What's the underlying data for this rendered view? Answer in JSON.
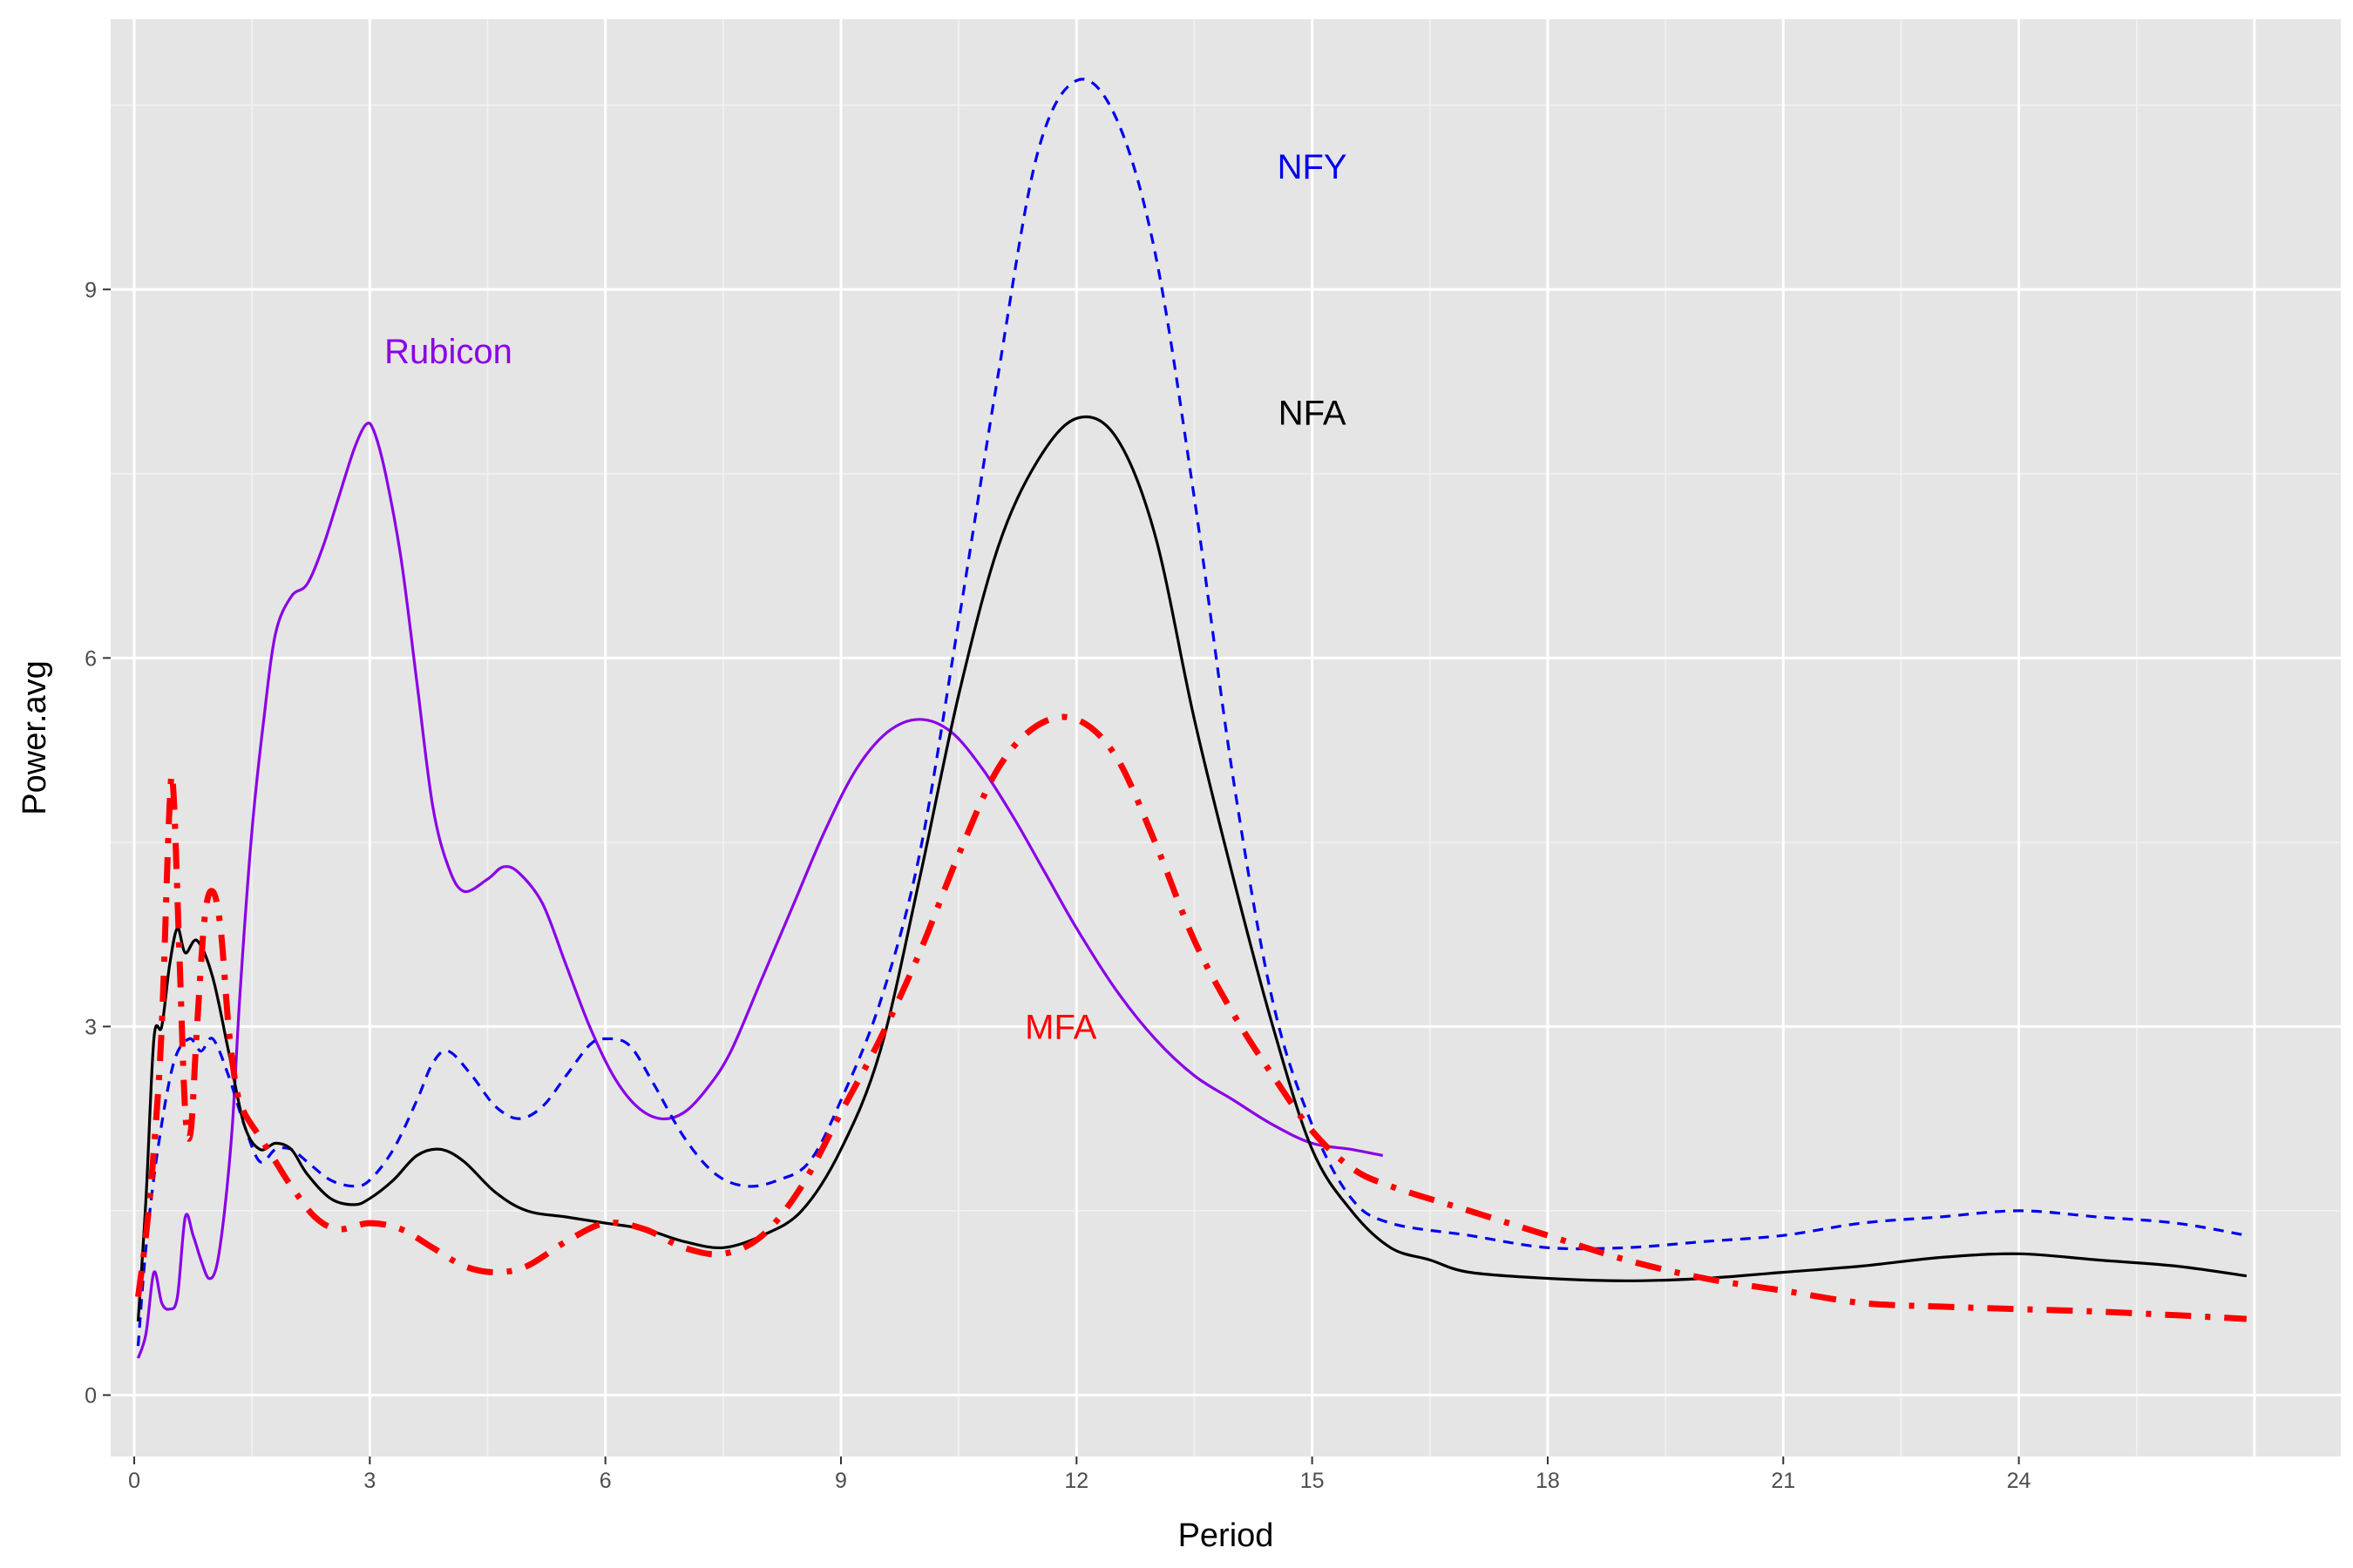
{
  "chart_data": {
    "type": "line",
    "xlabel": "Period",
    "ylabel": "Power.avg",
    "xlim": [
      -0.3,
      28.1
    ],
    "ylim": [
      -0.5,
      11.2
    ],
    "x_ticks": [
      0,
      3,
      6,
      9,
      12,
      15,
      18,
      21,
      24
    ],
    "y_ticks": [
      0,
      3,
      6,
      9
    ],
    "grid": true,
    "legend": "none",
    "series": [
      {
        "name": "NFY",
        "color": "#0000ee",
        "dash": "dashed",
        "points": [
          [
            0.05,
            0.4
          ],
          [
            0.15,
            1.2
          ],
          [
            0.3,
            2.0
          ],
          [
            0.5,
            2.7
          ],
          [
            0.7,
            2.9
          ],
          [
            0.85,
            2.8
          ],
          [
            1.0,
            2.9
          ],
          [
            1.2,
            2.6
          ],
          [
            1.4,
            2.2
          ],
          [
            1.6,
            1.9
          ],
          [
            1.8,
            2.0
          ],
          [
            2.0,
            2.0
          ],
          [
            2.2,
            1.9
          ],
          [
            2.5,
            1.75
          ],
          [
            2.8,
            1.7
          ],
          [
            3.0,
            1.75
          ],
          [
            3.3,
            2.0
          ],
          [
            3.6,
            2.4
          ],
          [
            3.8,
            2.7
          ],
          [
            4.0,
            2.8
          ],
          [
            4.3,
            2.6
          ],
          [
            4.6,
            2.35
          ],
          [
            4.9,
            2.25
          ],
          [
            5.2,
            2.35
          ],
          [
            5.5,
            2.6
          ],
          [
            5.8,
            2.85
          ],
          [
            6.0,
            2.9
          ],
          [
            6.3,
            2.85
          ],
          [
            6.6,
            2.55
          ],
          [
            7.0,
            2.1
          ],
          [
            7.4,
            1.8
          ],
          [
            7.8,
            1.7
          ],
          [
            8.2,
            1.75
          ],
          [
            8.6,
            1.9
          ],
          [
            9.0,
            2.4
          ],
          [
            9.5,
            3.2
          ],
          [
            10.0,
            4.4
          ],
          [
            10.5,
            6.3
          ],
          [
            11.0,
            8.3
          ],
          [
            11.5,
            10.1
          ],
          [
            12.0,
            10.7
          ],
          [
            12.5,
            10.4
          ],
          [
            13.0,
            9.3
          ],
          [
            13.5,
            7.3
          ],
          [
            14.0,
            5.0
          ],
          [
            14.5,
            3.2
          ],
          [
            15.0,
            2.2
          ],
          [
            15.5,
            1.6
          ],
          [
            16.0,
            1.4
          ],
          [
            17.0,
            1.3
          ],
          [
            18.0,
            1.2
          ],
          [
            19.0,
            1.2
          ],
          [
            20.0,
            1.25
          ],
          [
            21.0,
            1.3
          ],
          [
            22.0,
            1.4
          ],
          [
            23.0,
            1.45
          ],
          [
            24.0,
            1.5
          ],
          [
            25.0,
            1.45
          ],
          [
            26.0,
            1.4
          ],
          [
            26.9,
            1.3
          ]
        ]
      },
      {
        "name": "NFA",
        "color": "#000000",
        "dash": "solid",
        "points": [
          [
            0.05,
            0.6
          ],
          [
            0.15,
            1.6
          ],
          [
            0.25,
            2.9
          ],
          [
            0.35,
            3.0
          ],
          [
            0.45,
            3.5
          ],
          [
            0.55,
            3.8
          ],
          [
            0.65,
            3.6
          ],
          [
            0.8,
            3.7
          ],
          [
            1.0,
            3.4
          ],
          [
            1.2,
            2.8
          ],
          [
            1.4,
            2.2
          ],
          [
            1.6,
            2.0
          ],
          [
            1.8,
            2.05
          ],
          [
            2.0,
            2.0
          ],
          [
            2.2,
            1.8
          ],
          [
            2.5,
            1.6
          ],
          [
            2.8,
            1.55
          ],
          [
            3.0,
            1.6
          ],
          [
            3.3,
            1.75
          ],
          [
            3.6,
            1.95
          ],
          [
            3.9,
            2.0
          ],
          [
            4.2,
            1.9
          ],
          [
            4.6,
            1.65
          ],
          [
            5.0,
            1.5
          ],
          [
            5.5,
            1.45
          ],
          [
            6.0,
            1.4
          ],
          [
            6.5,
            1.35
          ],
          [
            7.0,
            1.25
          ],
          [
            7.5,
            1.2
          ],
          [
            8.0,
            1.3
          ],
          [
            8.5,
            1.5
          ],
          [
            9.0,
            2.0
          ],
          [
            9.5,
            2.8
          ],
          [
            10.0,
            4.2
          ],
          [
            10.5,
            5.7
          ],
          [
            11.0,
            6.9
          ],
          [
            11.5,
            7.6
          ],
          [
            12.0,
            7.95
          ],
          [
            12.5,
            7.8
          ],
          [
            13.0,
            7.0
          ],
          [
            13.5,
            5.5
          ],
          [
            14.0,
            4.2
          ],
          [
            14.5,
            3.0
          ],
          [
            15.0,
            2.0
          ],
          [
            15.5,
            1.5
          ],
          [
            16.0,
            1.2
          ],
          [
            16.5,
            1.1
          ],
          [
            17.0,
            1.0
          ],
          [
            18.0,
            0.95
          ],
          [
            19.0,
            0.93
          ],
          [
            20.0,
            0.95
          ],
          [
            21.0,
            1.0
          ],
          [
            22.0,
            1.05
          ],
          [
            23.0,
            1.12
          ],
          [
            24.0,
            1.15
          ],
          [
            25.0,
            1.1
          ],
          [
            26.0,
            1.05
          ],
          [
            26.9,
            0.97
          ]
        ]
      },
      {
        "name": "MFA",
        "color": "#ff0000",
        "dash": "dashdot",
        "points": [
          [
            0.05,
            0.8
          ],
          [
            0.15,
            1.3
          ],
          [
            0.25,
            2.0
          ],
          [
            0.35,
            3.0
          ],
          [
            0.45,
            4.8
          ],
          [
            0.5,
            4.9
          ],
          [
            0.58,
            3.5
          ],
          [
            0.65,
            2.3
          ],
          [
            0.72,
            2.15
          ],
          [
            0.8,
            3.0
          ],
          [
            0.9,
            3.9
          ],
          [
            1.0,
            4.1
          ],
          [
            1.1,
            3.8
          ],
          [
            1.2,
            3.0
          ],
          [
            1.3,
            2.5
          ],
          [
            1.4,
            2.3
          ],
          [
            1.6,
            2.1
          ],
          [
            1.8,
            1.9
          ],
          [
            2.0,
            1.7
          ],
          [
            2.3,
            1.45
          ],
          [
            2.6,
            1.35
          ],
          [
            3.0,
            1.4
          ],
          [
            3.4,
            1.35
          ],
          [
            3.8,
            1.2
          ],
          [
            4.2,
            1.05
          ],
          [
            4.6,
            1.0
          ],
          [
            5.0,
            1.05
          ],
          [
            5.5,
            1.25
          ],
          [
            6.0,
            1.4
          ],
          [
            6.5,
            1.35
          ],
          [
            7.0,
            1.2
          ],
          [
            7.5,
            1.15
          ],
          [
            8.0,
            1.3
          ],
          [
            8.5,
            1.7
          ],
          [
            9.0,
            2.3
          ],
          [
            9.5,
            2.9
          ],
          [
            10.0,
            3.6
          ],
          [
            10.5,
            4.4
          ],
          [
            11.0,
            5.1
          ],
          [
            11.5,
            5.45
          ],
          [
            12.0,
            5.5
          ],
          [
            12.5,
            5.2
          ],
          [
            13.0,
            4.5
          ],
          [
            13.5,
            3.7
          ],
          [
            14.0,
            3.1
          ],
          [
            14.5,
            2.6
          ],
          [
            15.0,
            2.15
          ],
          [
            15.5,
            1.85
          ],
          [
            16.0,
            1.7
          ],
          [
            17.0,
            1.5
          ],
          [
            18.0,
            1.3
          ],
          [
            19.0,
            1.1
          ],
          [
            20.0,
            0.95
          ],
          [
            21.0,
            0.85
          ],
          [
            22.0,
            0.75
          ],
          [
            23.0,
            0.72
          ],
          [
            24.0,
            0.7
          ],
          [
            25.0,
            0.68
          ],
          [
            26.0,
            0.65
          ],
          [
            26.9,
            0.62
          ]
        ]
      },
      {
        "name": "Rubicon",
        "color": "#8a00e6",
        "dash": "solid",
        "points": [
          [
            0.05,
            0.3
          ],
          [
            0.15,
            0.5
          ],
          [
            0.25,
            1.0
          ],
          [
            0.35,
            0.75
          ],
          [
            0.45,
            0.7
          ],
          [
            0.55,
            0.8
          ],
          [
            0.65,
            1.45
          ],
          [
            0.75,
            1.3
          ],
          [
            0.85,
            1.1
          ],
          [
            0.95,
            0.95
          ],
          [
            1.05,
            1.05
          ],
          [
            1.15,
            1.5
          ],
          [
            1.25,
            2.2
          ],
          [
            1.35,
            3.3
          ],
          [
            1.5,
            4.6
          ],
          [
            1.65,
            5.5
          ],
          [
            1.8,
            6.2
          ],
          [
            2.0,
            6.5
          ],
          [
            2.2,
            6.6
          ],
          [
            2.4,
            6.9
          ],
          [
            2.6,
            7.3
          ],
          [
            2.8,
            7.7
          ],
          [
            2.95,
            7.9
          ],
          [
            3.05,
            7.85
          ],
          [
            3.2,
            7.5
          ],
          [
            3.4,
            6.8
          ],
          [
            3.6,
            5.8
          ],
          [
            3.8,
            4.8
          ],
          [
            4.0,
            4.3
          ],
          [
            4.2,
            4.1
          ],
          [
            4.5,
            4.2
          ],
          [
            4.7,
            4.3
          ],
          [
            4.9,
            4.25
          ],
          [
            5.2,
            4.0
          ],
          [
            5.5,
            3.5
          ],
          [
            5.8,
            3.0
          ],
          [
            6.1,
            2.6
          ],
          [
            6.4,
            2.35
          ],
          [
            6.7,
            2.25
          ],
          [
            7.0,
            2.3
          ],
          [
            7.3,
            2.5
          ],
          [
            7.6,
            2.8
          ],
          [
            8.0,
            3.4
          ],
          [
            8.4,
            4.0
          ],
          [
            8.8,
            4.6
          ],
          [
            9.2,
            5.1
          ],
          [
            9.6,
            5.4
          ],
          [
            10.0,
            5.5
          ],
          [
            10.4,
            5.4
          ],
          [
            10.8,
            5.1
          ],
          [
            11.2,
            4.7
          ],
          [
            11.6,
            4.25
          ],
          [
            12.0,
            3.8
          ],
          [
            12.5,
            3.3
          ],
          [
            13.0,
            2.9
          ],
          [
            13.5,
            2.6
          ],
          [
            14.0,
            2.4
          ],
          [
            14.5,
            2.2
          ],
          [
            15.0,
            2.05
          ],
          [
            15.5,
            2.0
          ],
          [
            15.9,
            1.95
          ]
        ]
      }
    ],
    "annotations": [
      {
        "text": "NFY",
        "x": 15.0,
        "y": 10.0,
        "color": "#0000ee"
      },
      {
        "text": "NFA",
        "x": 15.0,
        "y": 8.0,
        "color": "#000000"
      },
      {
        "text": "Rubicon",
        "x": 4.0,
        "y": 8.5,
        "color": "#8a00e6"
      },
      {
        "text": "MFA",
        "x": 11.8,
        "y": 3.0,
        "color": "#ff0000"
      }
    ]
  }
}
